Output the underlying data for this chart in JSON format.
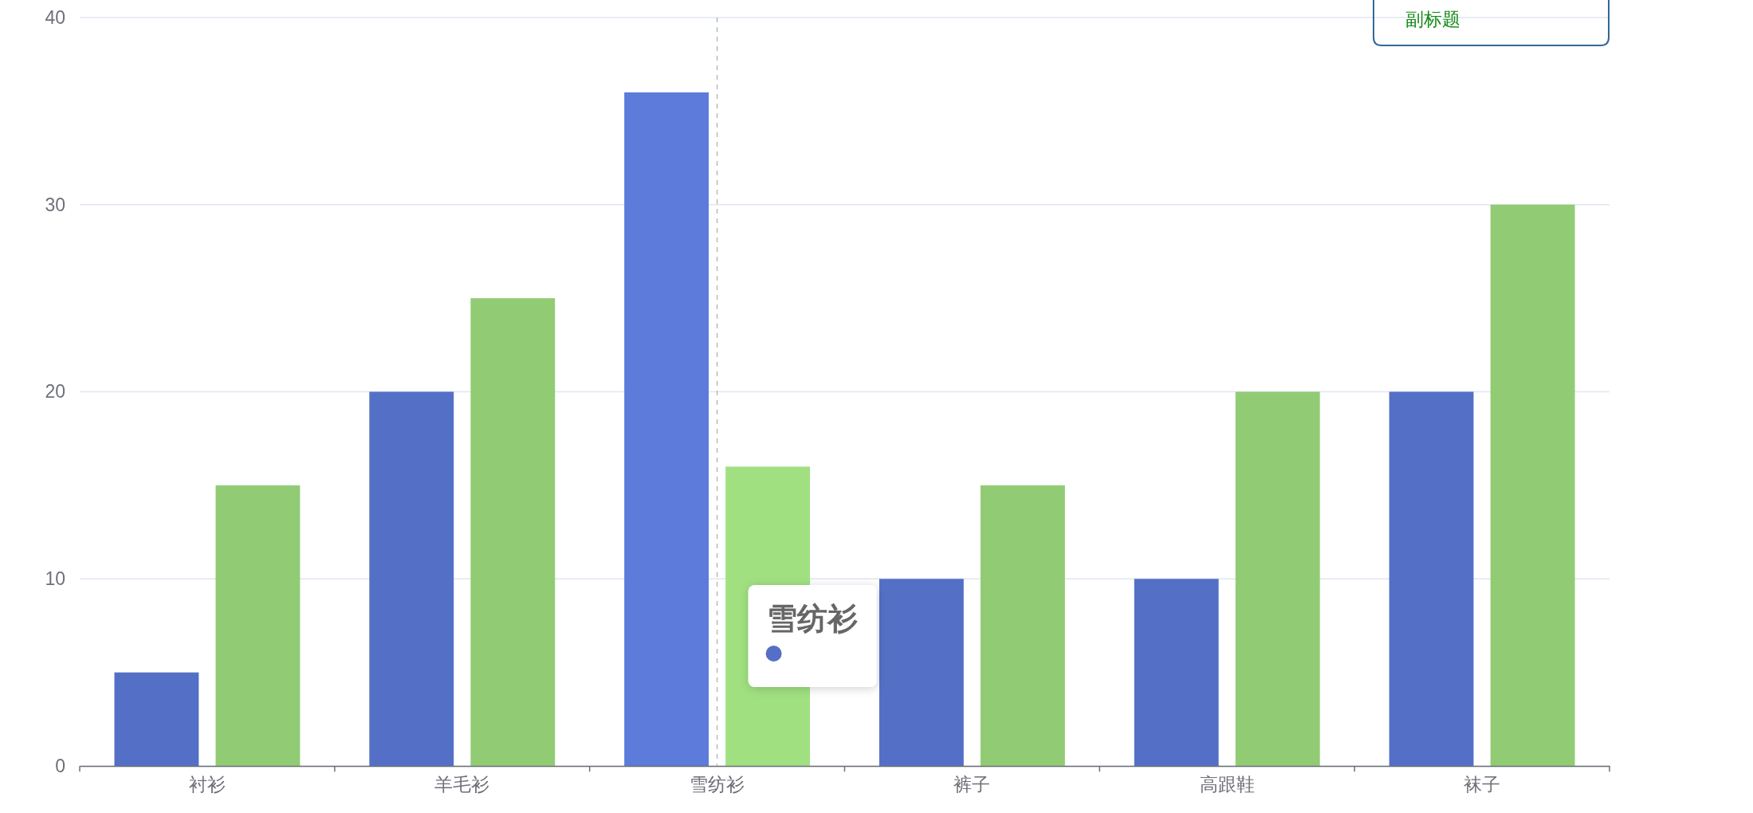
{
  "chart_data": {
    "type": "bar",
    "subtitle": "副标题",
    "categories": [
      "衬衫",
      "羊毛衫",
      "雪纺衫",
      "裤子",
      "高跟鞋",
      "袜子"
    ],
    "series": [
      {
        "color": "#5470c6",
        "colors": [
          "#5470c6",
          "#5470c6",
          "#5c7bda",
          "#5470c6",
          "#5470c6",
          "#5470c6"
        ],
        "values": [
          5,
          20,
          36,
          10,
          10,
          20
        ]
      },
      {
        "colors": [
          "#91cc75",
          "#91cc75",
          "#a0e081",
          "#91cc75",
          "#91cc75",
          "#91cc75"
        ],
        "values": [
          15,
          25,
          16,
          15,
          20,
          30
        ]
      }
    ],
    "ylim": [
      0,
      40
    ],
    "yticks": [
      0,
      10,
      20,
      30,
      40
    ],
    "grid": "y",
    "ref_lines": [
      {
        "axis": "x",
        "value": "雪纺衫",
        "color": "#b6bac6",
        "line_style": "dashed"
      }
    ],
    "annotations": [
      {
        "text": "雪纺衫",
        "x": "雪纺衫"
      }
    ]
  }
}
